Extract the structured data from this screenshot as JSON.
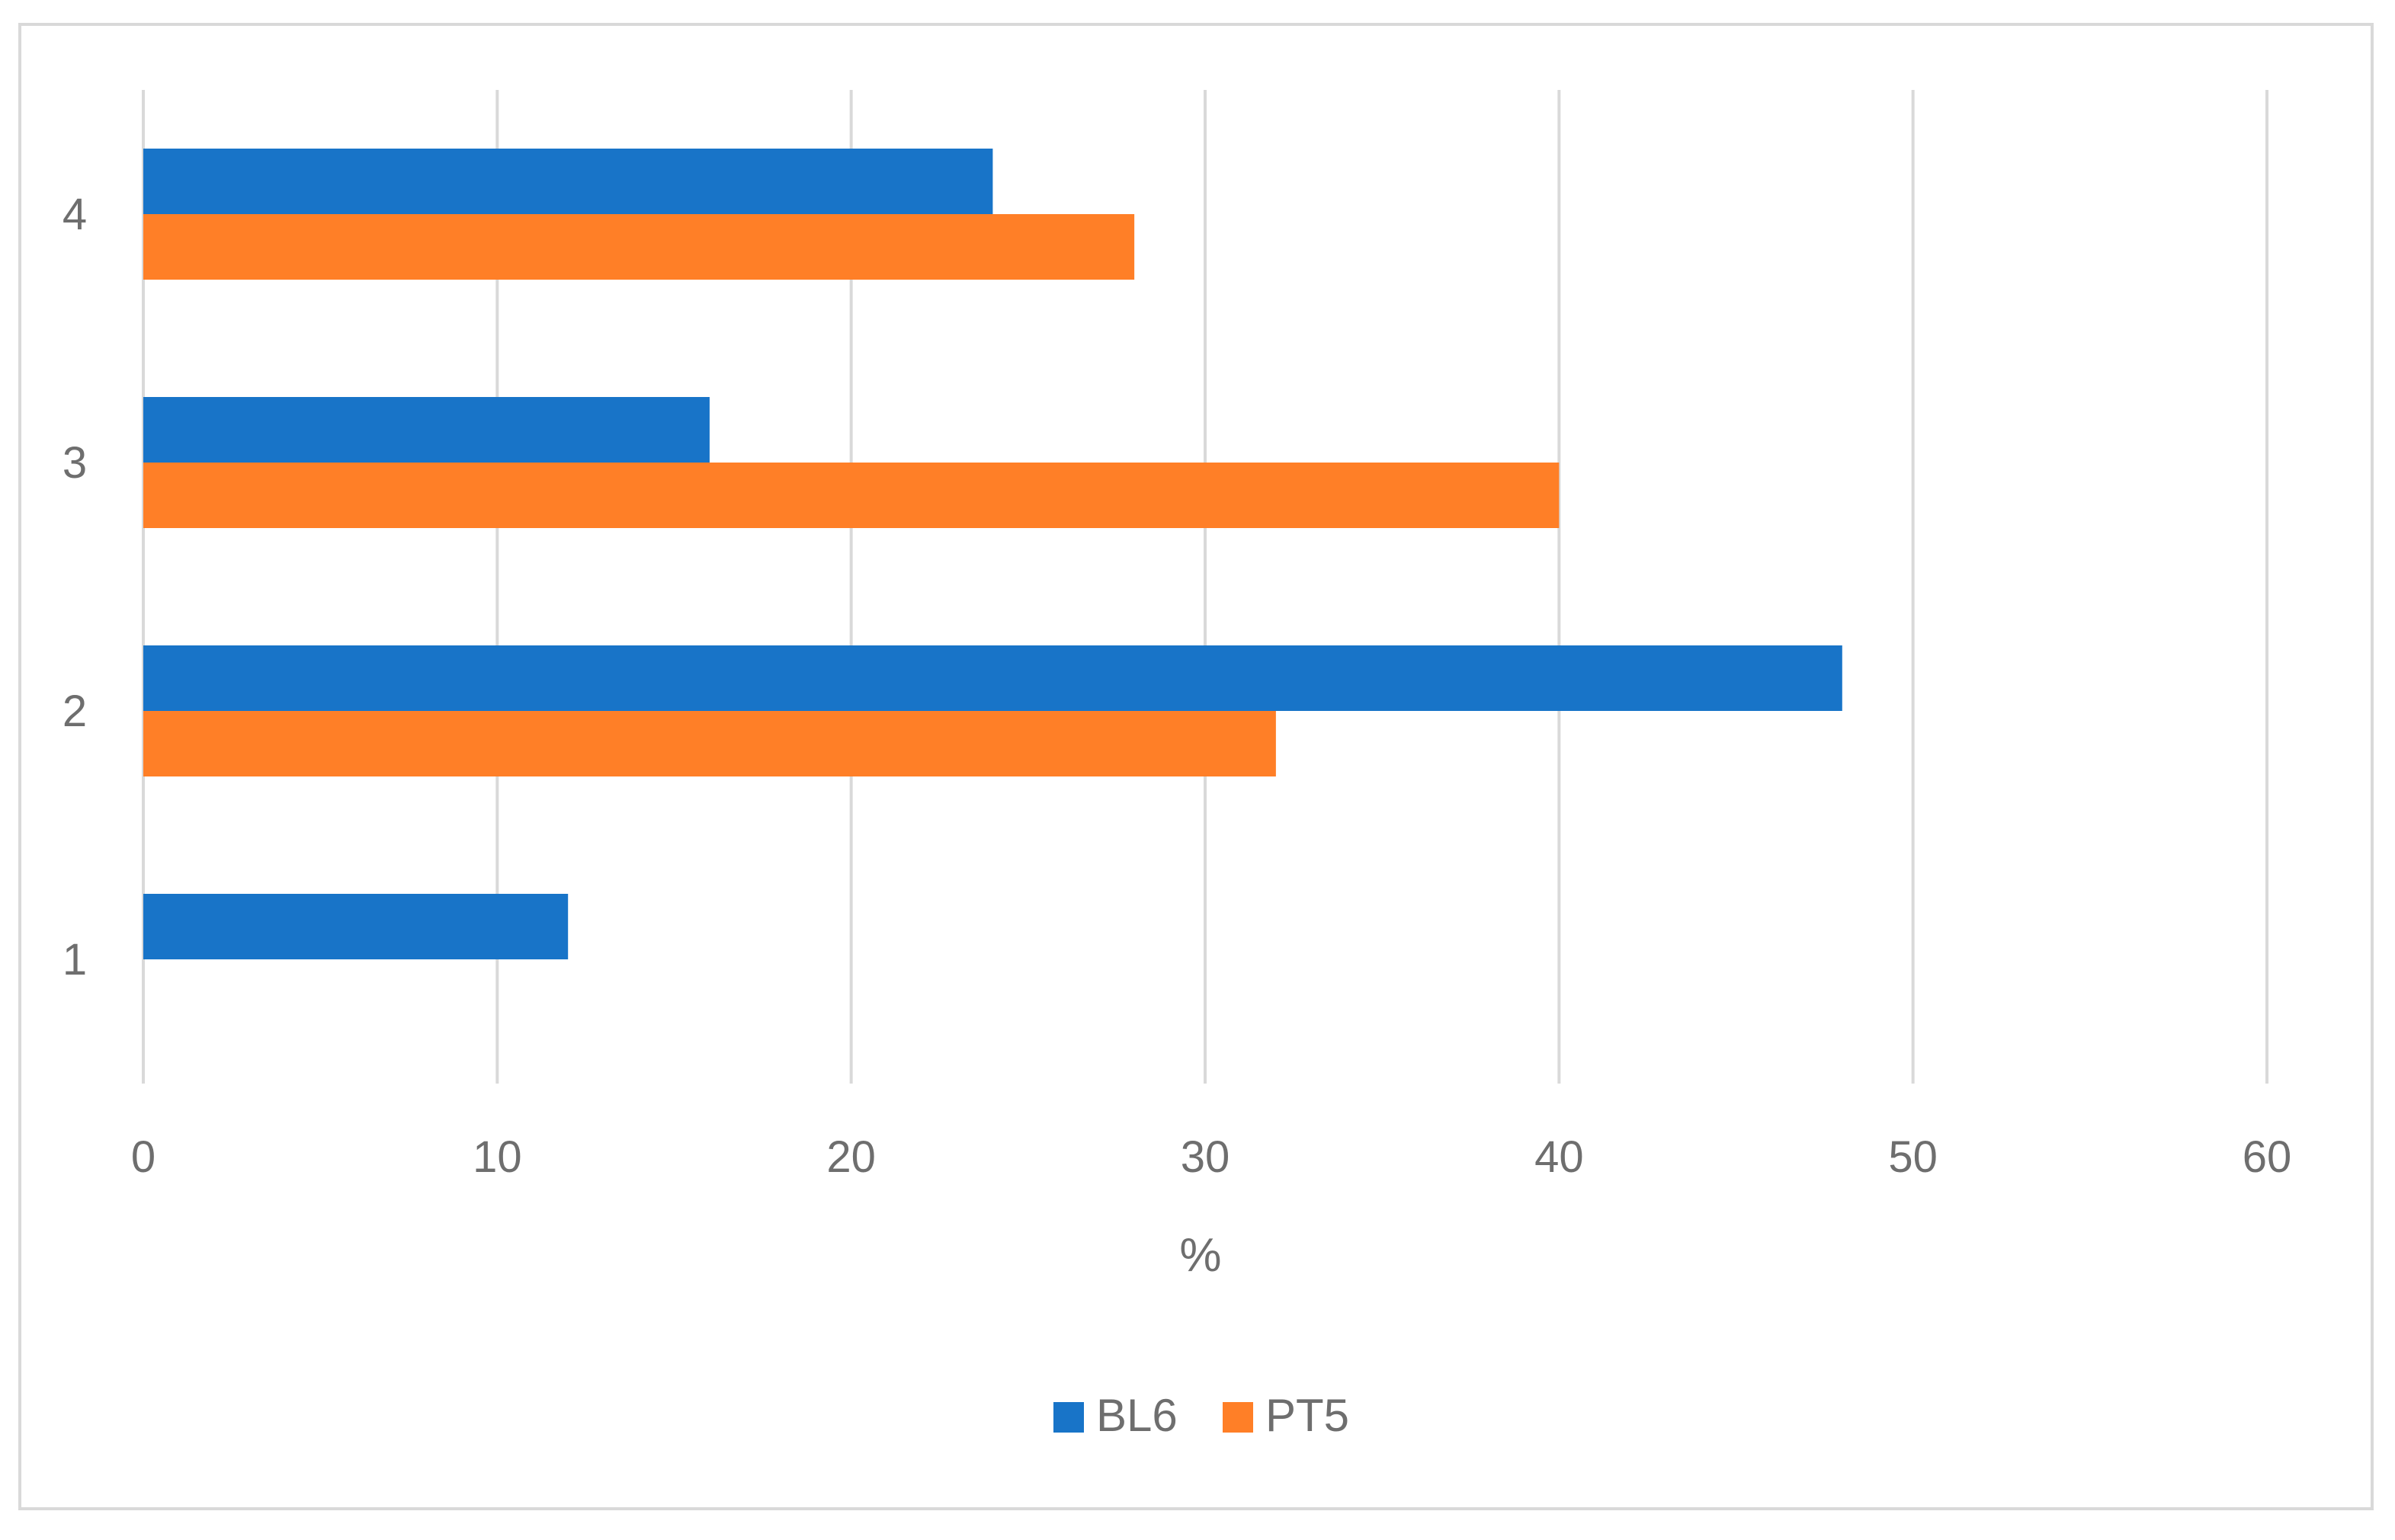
{
  "chart_data": {
    "type": "bar",
    "orientation": "horizontal",
    "categories": [
      "1",
      "2",
      "3",
      "4"
    ],
    "series": [
      {
        "name": "BL6",
        "color": "#1874c8",
        "values": [
          12,
          48,
          16,
          24
        ]
      },
      {
        "name": "PT5",
        "color": "#ff7f27",
        "values": [
          0,
          32,
          40,
          28
        ]
      }
    ],
    "xlabel": "%",
    "ylabel": "",
    "xlim": [
      0,
      60
    ],
    "xticks": [
      "0",
      "10",
      "20",
      "30",
      "40",
      "50",
      "60"
    ],
    "grid": true,
    "legend_position": "bottom"
  }
}
